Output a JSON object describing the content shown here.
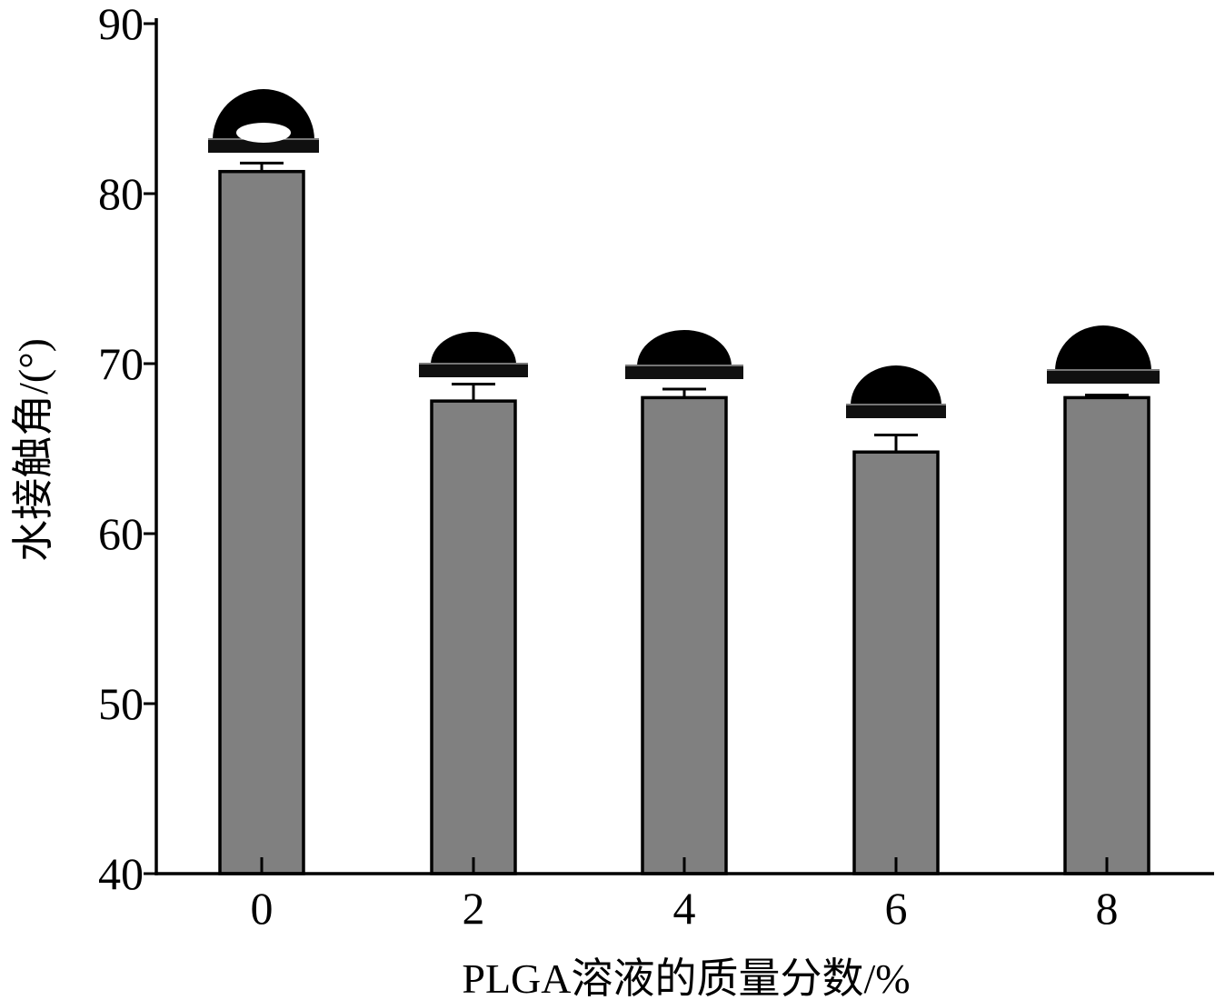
{
  "chart_data": {
    "type": "bar",
    "xlabel": "PLGA溶液的质量分数/%",
    "ylabel": "水接触角/(°)",
    "categories": [
      "0",
      "2",
      "4",
      "6",
      "8"
    ],
    "values": [
      81.3,
      67.8,
      68.0,
      64.8,
      68.0
    ],
    "error": [
      0.5,
      1.0,
      0.5,
      1.0,
      0.15
    ],
    "ylim": [
      40,
      90
    ],
    "yticks": [
      "40",
      "50",
      "60",
      "70",
      "80",
      "90"
    ],
    "grid": false,
    "legend": "none",
    "bar_color": "#808080",
    "inset_images": [
      "droplet-photo",
      "droplet-photo",
      "droplet-photo",
      "droplet-photo",
      "droplet-photo"
    ]
  }
}
